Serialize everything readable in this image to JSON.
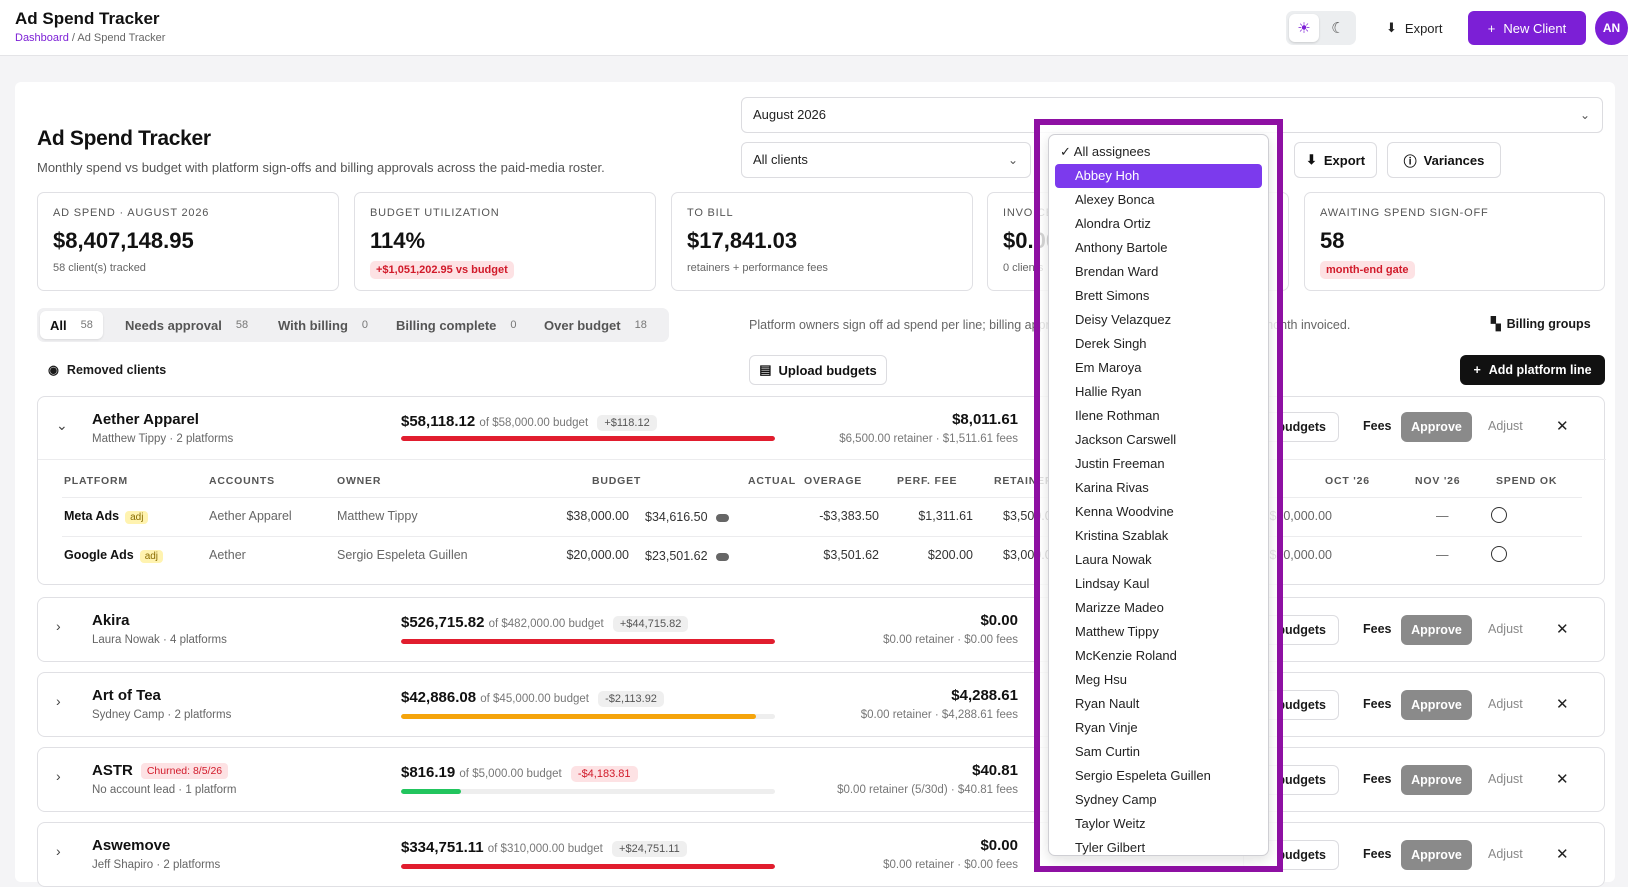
{
  "app": {
    "title": "Ad Spend Tracker",
    "breadcrumb_link": "Dashboard",
    "breadcrumb_sep": "/",
    "breadcrumb_current": "Ad Spend Tracker"
  },
  "topbar": {
    "export_label": "Export",
    "new_client_label": "New Client",
    "avatar_initials": "AN",
    "accent": "#7c1fd6"
  },
  "header": {
    "title": "Ad Spend Tracker",
    "subtitle": "Monthly spend vs budget with platform sign-offs and billing approvals across the paid-media roster."
  },
  "filters": {
    "month": "August 2026",
    "client": "All clients",
    "export_label": "Export",
    "variances_label": "Variances"
  },
  "stats": [
    {
      "label": "AD SPEND · AUGUST 2026",
      "value": "$8,407,148.95",
      "note": "58 client(s) tracked"
    },
    {
      "label": "BUDGET UTILIZATION",
      "value": "114%",
      "pill": "+$1,051,202.95 vs budget"
    },
    {
      "label": "TO BILL",
      "value": "$17,841.03",
      "note": "retainers + performance fees"
    },
    {
      "label": "INVOICED",
      "value": "$0.00",
      "note": "0 clients"
    },
    {
      "label": "AWAITING SPEND SIGN-OFF",
      "value": "58",
      "pill": "month-end gate"
    }
  ],
  "tabs": [
    {
      "label": "All",
      "count": "58"
    },
    {
      "label": "Needs approval",
      "count": "58"
    },
    {
      "label": "With billing",
      "count": "0"
    },
    {
      "label": "Billing complete",
      "count": "0"
    },
    {
      "label": "Over budget",
      "count": "18"
    }
  ],
  "info_text": "Platform owners sign off ad spend per line; billing approves once spend is signed off and the month invoiced.",
  "billing_groups_label": "Billing groups",
  "removed_clients_label": "Removed clients",
  "upload_budgets_label": "Upload budgets",
  "add_platform_line_label": "Add platform line",
  "actions": {
    "budgets": "budgets",
    "fees": "Fees",
    "approve": "Approve",
    "adjust": "Adjust"
  },
  "clients": [
    {
      "name": "Aether Apparel",
      "meta": "Matthew Tippy · 2 platforms",
      "spend": "$58,118.12",
      "budget": "of $58,000.00 budget",
      "delta": "+$118.12",
      "utilization": 1.0,
      "bar_color": "#e11d2e",
      "bill": "$8,011.61",
      "bill_sub": "$6,500.00 retainer · $1,511.61 fees"
    },
    {
      "name": "Akira",
      "meta": "Laura Nowak · 4 platforms",
      "spend": "$526,715.82",
      "budget": "of $482,000.00 budget",
      "delta": "+$44,715.82",
      "utilization": 1.0,
      "bar_color": "#e11d2e",
      "bill": "$0.00",
      "bill_sub": "$0.00 retainer · $0.00 fees"
    },
    {
      "name": "Art of Tea",
      "meta": "Sydney Camp · 2 platforms",
      "spend": "$42,886.08",
      "budget": "of $45,000.00 budget",
      "delta": "-$2,113.92",
      "utilization": 0.95,
      "bar_color": "#f5a40b",
      "bill": "$4,288.61",
      "bill_sub": "$0.00 retainer · $4,288.61 fees"
    },
    {
      "name": "ASTR",
      "badge": "Churned: 8/5/26",
      "meta": "No account lead · 1 platform",
      "spend": "$816.19",
      "budget": "of $5,000.00 budget",
      "delta": "-$4,183.81",
      "utilization": 0.16,
      "bar_color": "#22c55e",
      "bill": "$40.81",
      "bill_sub": "$0.00 retainer (5/30d) · $40.81 fees"
    },
    {
      "name": "Aswemove",
      "meta": "Jeff Shapiro · 2 platforms",
      "spend": "$334,751.11",
      "budget": "of $310,000.00 budget",
      "delta": "+$24,751.11",
      "utilization": 1.0,
      "bar_color": "#e11d2e",
      "bill": "$0.00",
      "bill_sub": "$0.00 retainer · $0.00 fees"
    }
  ],
  "platform_table": {
    "headers": [
      "PLATFORM",
      "ACCOUNTS",
      "OWNER",
      "BUDGET",
      "ACTUAL",
      "OVERAGE",
      "PERF. FEE",
      "RETAINER",
      "OCT '26",
      "NOV '26",
      "SPEND OK"
    ],
    "rows": [
      {
        "platform": "Meta Ads",
        "adj": "adj",
        "account": "Aether Apparel",
        "owner": "Matthew Tippy",
        "budget": "$38,000.00",
        "actual": "$34,616.50",
        "overage": "-$3,383.50",
        "perf_fee": "$1,311.61",
        "retainer": "$3,500.00",
        "oct": "$30,000.00",
        "nov": "—"
      },
      {
        "platform": "Google Ads",
        "adj": "adj",
        "account": "Aether",
        "owner": "Sergio Espeleta Guillen",
        "budget": "$20,000.00",
        "actual": "$23,501.62",
        "overage": "$3,501.62",
        "perf_fee": "$200.00",
        "retainer": "$3,000.00",
        "oct": "$20,000.00",
        "nov": "—"
      }
    ]
  },
  "assignee_dropdown": {
    "check": "✓",
    "options": [
      "All assignees",
      "Abbey Hoh",
      "Alexey Bonca",
      "Alondra Ortiz",
      "Anthony Bartole",
      "Brendan Ward",
      "Brett Simons",
      "Deisy Velazquez",
      "Derek Singh",
      "Em Maroya",
      "Hallie Ryan",
      "Ilene Rothman",
      "Jackson Carswell",
      "Justin Freeman",
      "Karina Rivas",
      "Kenna Woodvine",
      "Kristina Szablak",
      "Laura Nowak",
      "Lindsay Kaul",
      "Marizze Madeo",
      "Matthew Tippy",
      "McKenzie Roland",
      "Meg Hsu",
      "Ryan Nault",
      "Ryan Vinje",
      "Sam Curtin",
      "Sergio Espeleta Guillen",
      "Sydney Camp",
      "Taylor Weitz",
      "Tyler Gilbert"
    ],
    "selected": "Abbey Hoh"
  }
}
